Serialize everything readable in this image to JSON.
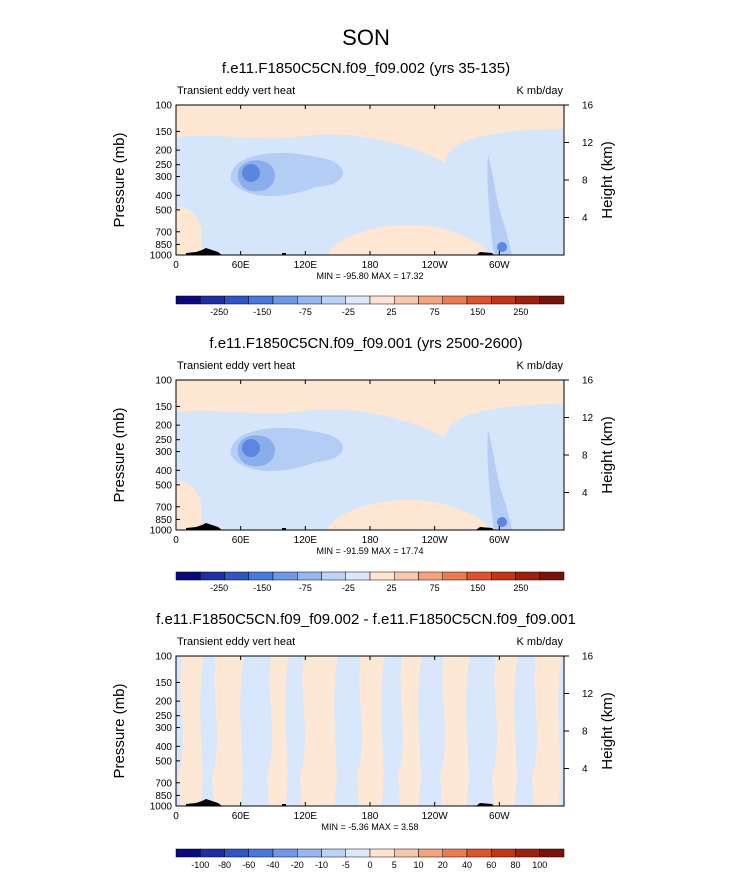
{
  "chart_data": {
    "type": "heatmap",
    "title": "SON",
    "colors": {
      "low_fill": "#d6e6fa",
      "mid_fill": "#b3cdf5",
      "strong_fill": "#8aaeec",
      "core_fill": "#5b87e0",
      "high_fill": "#fde6d2",
      "terrain": "#000000",
      "diff_low": "#d8e7fb",
      "diff_high": "#fde8d6"
    },
    "panels": [
      {
        "title": "f.e11.F1850C5CN.f09_f09.002 (yrs 35-135)",
        "left_label": "Transient eddy vert heat",
        "right_label": "K mb/day",
        "xlabel": "",
        "ylabel": "Pressure (mb)",
        "y2label": "Height (km)",
        "x_ticks": [
          "0",
          "60E",
          "120E",
          "180",
          "120W",
          "60W"
        ],
        "x_ticks_lon": [
          0,
          60,
          120,
          180,
          240,
          300
        ],
        "xlim": [
          0,
          360
        ],
        "y_ticks": [
          "100",
          "150",
          "200",
          "250",
          "300",
          "400",
          "500",
          "700",
          "850",
          "1000"
        ],
        "y_ticks_p": [
          100,
          150,
          200,
          250,
          300,
          400,
          500,
          700,
          850,
          1000
        ],
        "ylim": [
          1000,
          100
        ],
        "yscale": "log",
        "y2_ticks": [
          "4",
          "8",
          "12",
          "16"
        ],
        "y2_ticks_km": [
          4,
          8,
          12,
          16
        ],
        "stats": "MIN = -95.80  MAX =  17.32",
        "min": -95.8,
        "max": 17.32,
        "colorbar": {
          "labels": [
            "-250",
            "-150",
            "-75",
            "-25",
            "25",
            "75",
            "150",
            "250"
          ],
          "colors": [
            "#0a0a80",
            "#1c2fa6",
            "#2f55c8",
            "#4879e0",
            "#6e98ec",
            "#96b7f2",
            "#bcd2f7",
            "#dce9fb",
            "#fde5d2",
            "#f9c8aa",
            "#f4a37c",
            "#ee7b4e",
            "#e05229",
            "#c43517",
            "#a0200f",
            "#7a1208"
          ]
        }
      },
      {
        "title": "f.e11.F1850C5CN.f09_f09.001 (yrs 2500-2600)",
        "left_label": "Transient eddy vert heat",
        "right_label": "K mb/day",
        "xlabel": "",
        "ylabel": "Pressure (mb)",
        "y2label": "Height (km)",
        "x_ticks": [
          "0",
          "60E",
          "120E",
          "180",
          "120W",
          "60W"
        ],
        "x_ticks_lon": [
          0,
          60,
          120,
          180,
          240,
          300
        ],
        "xlim": [
          0,
          360
        ],
        "y_ticks": [
          "100",
          "150",
          "200",
          "250",
          "300",
          "400",
          "500",
          "700",
          "850",
          "1000"
        ],
        "y_ticks_p": [
          100,
          150,
          200,
          250,
          300,
          400,
          500,
          700,
          850,
          1000
        ],
        "ylim": [
          1000,
          100
        ],
        "yscale": "log",
        "y2_ticks": [
          "4",
          "8",
          "12",
          "16"
        ],
        "y2_ticks_km": [
          4,
          8,
          12,
          16
        ],
        "stats": "MIN = -91.59  MAX =  17.74",
        "min": -91.59,
        "max": 17.74,
        "colorbar": {
          "labels": [
            "-250",
            "-150",
            "-75",
            "-25",
            "25",
            "75",
            "150",
            "250"
          ],
          "colors": [
            "#0a0a80",
            "#1c2fa6",
            "#2f55c8",
            "#4879e0",
            "#6e98ec",
            "#96b7f2",
            "#bcd2f7",
            "#dce9fb",
            "#fde5d2",
            "#f9c8aa",
            "#f4a37c",
            "#ee7b4e",
            "#e05229",
            "#c43517",
            "#a0200f",
            "#7a1208"
          ]
        }
      },
      {
        "title": "f.e11.F1850C5CN.f09_f09.002 - f.e11.F1850C5CN.f09_f09.001",
        "left_label": "Transient eddy vert heat",
        "right_label": "K mb/day",
        "xlabel": "",
        "ylabel": "Pressure (mb)",
        "y2label": "Height (km)",
        "x_ticks": [
          "0",
          "60E",
          "120E",
          "180",
          "120W",
          "60W"
        ],
        "x_ticks_lon": [
          0,
          60,
          120,
          180,
          240,
          300
        ],
        "xlim": [
          0,
          360
        ],
        "y_ticks": [
          "100",
          "150",
          "200",
          "250",
          "300",
          "400",
          "500",
          "700",
          "850",
          "1000"
        ],
        "y_ticks_p": [
          100,
          150,
          200,
          250,
          300,
          400,
          500,
          700,
          850,
          1000
        ],
        "ylim": [
          1000,
          100
        ],
        "yscale": "log",
        "y2_ticks": [
          "4",
          "8",
          "12",
          "16"
        ],
        "y2_ticks_km": [
          4,
          8,
          12,
          16
        ],
        "stats": "MIN = -5.36  MAX =  3.58",
        "min": -5.36,
        "max": 3.58,
        "colorbar": {
          "labels": [
            "-100",
            "-80",
            "-60",
            "-40",
            "-20",
            "-10",
            "-5",
            "0",
            "5",
            "10",
            "20",
            "40",
            "60",
            "80",
            "100"
          ],
          "colors": [
            "#0a0a80",
            "#1c2fa6",
            "#2f55c8",
            "#4879e0",
            "#6e98ec",
            "#96b7f2",
            "#bcd2f7",
            "#dce9fb",
            "#fde5d2",
            "#f9c8aa",
            "#f4a37c",
            "#ee7b4e",
            "#e05229",
            "#c43517",
            "#a0200f",
            "#7a1208"
          ]
        }
      }
    ]
  }
}
